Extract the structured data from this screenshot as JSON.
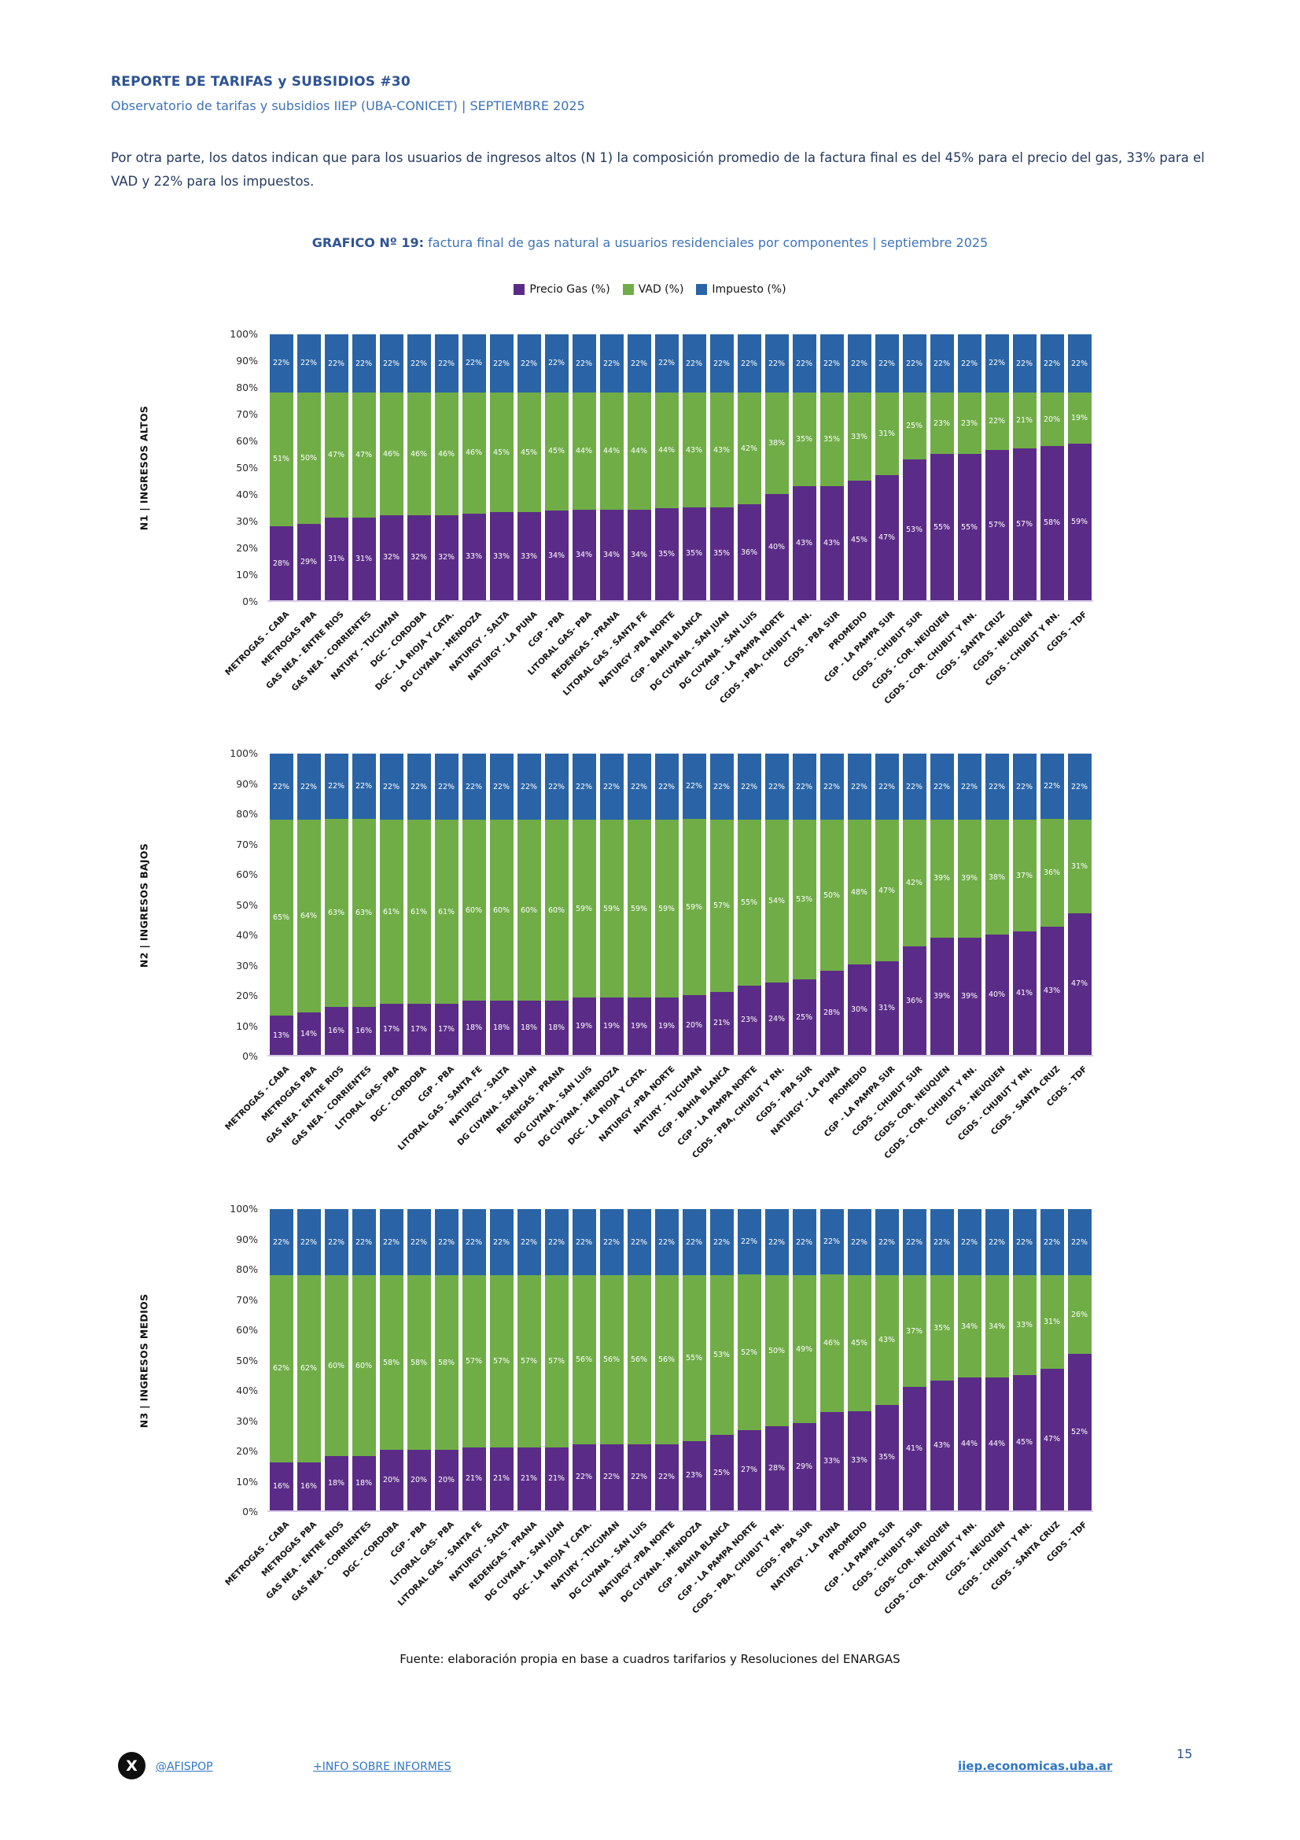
{
  "page": {
    "report_title": "REPORTE DE TARIFAS y SUBSIDIOS #30",
    "report_subtitle": "Observatorio de tarifas y subsidios IIEP (UBA-CONICET) | SEPTIEMBRE 2025",
    "intro_paragraph": "Por otra parte, los datos indican que para los usuarios de ingresos altos (N 1) la composición promedio de la factura final es del 45% para el precio del gas, 33% para el VAD y 22% para los impuestos.",
    "figure_label": "GRAFICO Nº 19:",
    "figure_caption": "factura final de gas natural a usuarios residenciales por componentes | septiembre 2025",
    "source_note": "Fuente: elaboración propia en base a cuadros tarifarios y Resoluciones del ENARGAS",
    "footer": {
      "x_icon_glyph": "X",
      "x_handle": "@AFISPOP",
      "info_link": "+INFO SOBRE INFORMES",
      "site_link": "iiep.economicas.uba.ar",
      "page_number": "15"
    }
  },
  "legend": [
    {
      "key": "precio-gas",
      "label": "Precio Gas (%)",
      "color": "#5B2C87"
    },
    {
      "key": "vad",
      "label": "VAD (%)",
      "color": "#70AD47"
    },
    {
      "key": "impuesto",
      "label": "Impuesto (%)",
      "color": "#2A64A6"
    }
  ],
  "chart_data": [
    {
      "type": "bar",
      "stacked": true,
      "y_axis_label": "N1 | INGRESOS ALTOS",
      "y_ticks": [
        "0%",
        "10%",
        "20%",
        "30%",
        "40%",
        "50%",
        "60%",
        "70%",
        "80%",
        "90%",
        "100%"
      ],
      "ylim": [
        0,
        100
      ],
      "grid": false,
      "legend_position": "top",
      "categories": [
        "METROGAS - CABA",
        "METROGAS PBA",
        "GAS NEA - ENTRE RIOS",
        "GAS NEA - CORRIENTES",
        "NATURY - TUCUMAN",
        "DGC - CORDOBA",
        "DGC - LA RIOJA Y CATA.",
        "DG CUYANA - MENDOZA",
        "NATURGY - SALTA",
        "NATURGY - LA PUNA",
        "CGP - PBA",
        "LITORAL GAS- PBA",
        "REDENGAS - PRANA",
        "LITORAL GAS - SANTA FE",
        "NATURGY -PBA NORTE",
        "CGP - BAHIA BLANCA",
        "DG CUYANA - SAN JUAN",
        "DG CUYANA - SAN LUIS",
        "CGP - LA PAMPA NORTE",
        "CGDS - PBA, CHUBUT Y RN.",
        "CGDS - PBA SUR",
        "PROMEDIO",
        "CGP - LA PAMPA SUR",
        "CGDS - CHUBUT SUR",
        "CGDS - COR. NEUQUEN",
        "CGDS - COR. CHUBUT Y RN.",
        "CGDS - SANTA CRUZ",
        "CGDS - NEUQUEN",
        "CGDS - CHUBUT Y RN.",
        "CGDS - TDF"
      ],
      "series": [
        {
          "key": "precio-gas",
          "name": "Precio Gas (%)",
          "color": "#5B2C87",
          "values": [
            28,
            29,
            31,
            31,
            32,
            32,
            32,
            33,
            33,
            33,
            34,
            34,
            34,
            34,
            35,
            35,
            35,
            36,
            40,
            43,
            43,
            45,
            47,
            53,
            55,
            55,
            57,
            57,
            58,
            59
          ]
        },
        {
          "key": "vad",
          "name": "VAD (%)",
          "color": "#70AD47",
          "values": [
            51,
            50,
            47,
            47,
            46,
            46,
            46,
            46,
            45,
            45,
            45,
            44,
            44,
            44,
            44,
            43,
            43,
            42,
            38,
            35,
            35,
            33,
            31,
            25,
            23,
            23,
            22,
            21,
            20,
            19
          ]
        },
        {
          "key": "impuesto",
          "name": "Impuesto (%)",
          "color": "#2A64A6",
          "values": [
            22,
            22,
            22,
            22,
            22,
            22,
            22,
            22,
            22,
            22,
            22,
            22,
            22,
            22,
            22,
            22,
            22,
            22,
            22,
            22,
            22,
            22,
            22,
            22,
            22,
            22,
            22,
            22,
            22,
            22
          ]
        }
      ]
    },
    {
      "type": "bar",
      "stacked": true,
      "y_axis_label": "N2 | INGRESOS BAJOS",
      "y_ticks": [
        "0%",
        "10%",
        "20%",
        "30%",
        "40%",
        "50%",
        "60%",
        "70%",
        "80%",
        "90%",
        "100%"
      ],
      "ylim": [
        0,
        100
      ],
      "grid": false,
      "legend_position": "top",
      "categories": [
        "METROGAS - CABA",
        "METROGAS PBA",
        "GAS NEA - ENTRE RIOS",
        "GAS NEA - CORRIENTES",
        "LITORAL GAS- PBA",
        "DGC - CORDOBA",
        "CGP - PBA",
        "LITORAL GAS - SANTA FE",
        "NATURGY - SALTA",
        "DG CUYANA - SAN JUAN",
        "REDENGAS - PRANA",
        "DG CUYANA - SAN LUIS",
        "DG CUYANA - MENDOZA",
        "DGC - LA RIOJA Y CATA.",
        "NATURGY -PBA NORTE",
        "NATURY - TUCUMAN",
        "CGP - BAHIA BLANCA",
        "CGP - LA PAMPA NORTE",
        "CGDS - PBA, CHUBUT Y RN.",
        "CGDS - PBA SUR",
        "NATURGY - LA PUNA",
        "PROMEDIO",
        "CGP - LA PAMPA SUR",
        "CGDS - CHUBUT SUR",
        "CGDS- COR. NEUQUEN",
        "CGDS - COR. CHUBUT Y RN.",
        "CGDS - NEUQUEN",
        "CGDS - CHUBUT Y RN.",
        "CGDS - SANTA CRUZ",
        "CGDS - TDF"
      ],
      "series": [
        {
          "key": "precio-gas",
          "name": "Precio Gas (%)",
          "color": "#5B2C87",
          "values": [
            13,
            14,
            16,
            16,
            17,
            17,
            17,
            18,
            18,
            18,
            18,
            19,
            19,
            19,
            19,
            20,
            21,
            23,
            24,
            25,
            28,
            30,
            31,
            36,
            39,
            39,
            40,
            41,
            43,
            47
          ]
        },
        {
          "key": "vad",
          "name": "VAD (%)",
          "color": "#70AD47",
          "values": [
            65,
            64,
            63,
            63,
            61,
            61,
            61,
            60,
            60,
            60,
            60,
            59,
            59,
            59,
            59,
            59,
            57,
            55,
            54,
            53,
            50,
            48,
            47,
            42,
            39,
            39,
            38,
            37,
            36,
            31
          ]
        },
        {
          "key": "impuesto",
          "name": "Impuesto (%)",
          "color": "#2A64A6",
          "values": [
            22,
            22,
            22,
            22,
            22,
            22,
            22,
            22,
            22,
            22,
            22,
            22,
            22,
            22,
            22,
            22,
            22,
            22,
            22,
            22,
            22,
            22,
            22,
            22,
            22,
            22,
            22,
            22,
            22,
            22
          ]
        }
      ]
    },
    {
      "type": "bar",
      "stacked": true,
      "y_axis_label": "N3 | INGRESOS MEDIOS",
      "y_ticks": [
        "0%",
        "10%",
        "20%",
        "30%",
        "40%",
        "50%",
        "60%",
        "70%",
        "80%",
        "90%",
        "100%"
      ],
      "ylim": [
        0,
        100
      ],
      "grid": false,
      "legend_position": "top",
      "categories": [
        "METROGAS - CABA",
        "METROGAS PBA",
        "GAS NEA - ENTRE RIOS",
        "GAS NEA - CORRIENTES",
        "DGC - CORDOBA",
        "CGP - PBA",
        "LITORAL GAS- PBA",
        "LITORAL GAS - SANTA FE",
        "NATURGY - SALTA",
        "REDENGAS - PRANA",
        "DG CUYANA - SAN JUAN",
        "DGC - LA RIOJA Y CATA.",
        "NATURY - TUCUMAN",
        "DG CUYANA - SAN LUIS",
        "NATURGY -PBA NORTE",
        "DG CUYANA - MENDOZA",
        "CGP - BAHIA BLANCA",
        "CGP - LA PAMPA NORTE",
        "CGDS - PBA, CHUBUT Y RN.",
        "CGDS - PBA SUR",
        "NATURGY - LA PUNA",
        "PROMEDIO",
        "CGP - LA PAMPA SUR",
        "CGDS - CHUBUT SUR",
        "CGDS- COR. NEUQUEN",
        "CGDS - COR. CHUBUT Y RN.",
        "CGDS - NEUQUEN",
        "CGDS - CHUBUT Y RN.",
        "CGDS - SANTA CRUZ",
        "CGDS - TDF"
      ],
      "series": [
        {
          "key": "precio-gas",
          "name": "Precio Gas (%)",
          "color": "#5B2C87",
          "values": [
            16,
            16,
            18,
            18,
            20,
            20,
            20,
            21,
            21,
            21,
            21,
            22,
            22,
            22,
            22,
            23,
            25,
            27,
            28,
            29,
            33,
            33,
            35,
            41,
            43,
            44,
            44,
            45,
            47,
            52
          ]
        },
        {
          "key": "vad",
          "name": "VAD (%)",
          "color": "#70AD47",
          "values": [
            62,
            62,
            60,
            60,
            58,
            58,
            58,
            57,
            57,
            57,
            57,
            56,
            56,
            56,
            56,
            55,
            53,
            52,
            50,
            49,
            46,
            45,
            43,
            37,
            35,
            34,
            34,
            33,
            31,
            26
          ]
        },
        {
          "key": "impuesto",
          "name": "Impuesto (%)",
          "color": "#2A64A6",
          "values": [
            22,
            22,
            22,
            22,
            22,
            22,
            22,
            22,
            22,
            22,
            22,
            22,
            22,
            22,
            22,
            22,
            22,
            22,
            22,
            22,
            22,
            22,
            22,
            22,
            22,
            22,
            22,
            22,
            22,
            22
          ]
        }
      ]
    }
  ]
}
